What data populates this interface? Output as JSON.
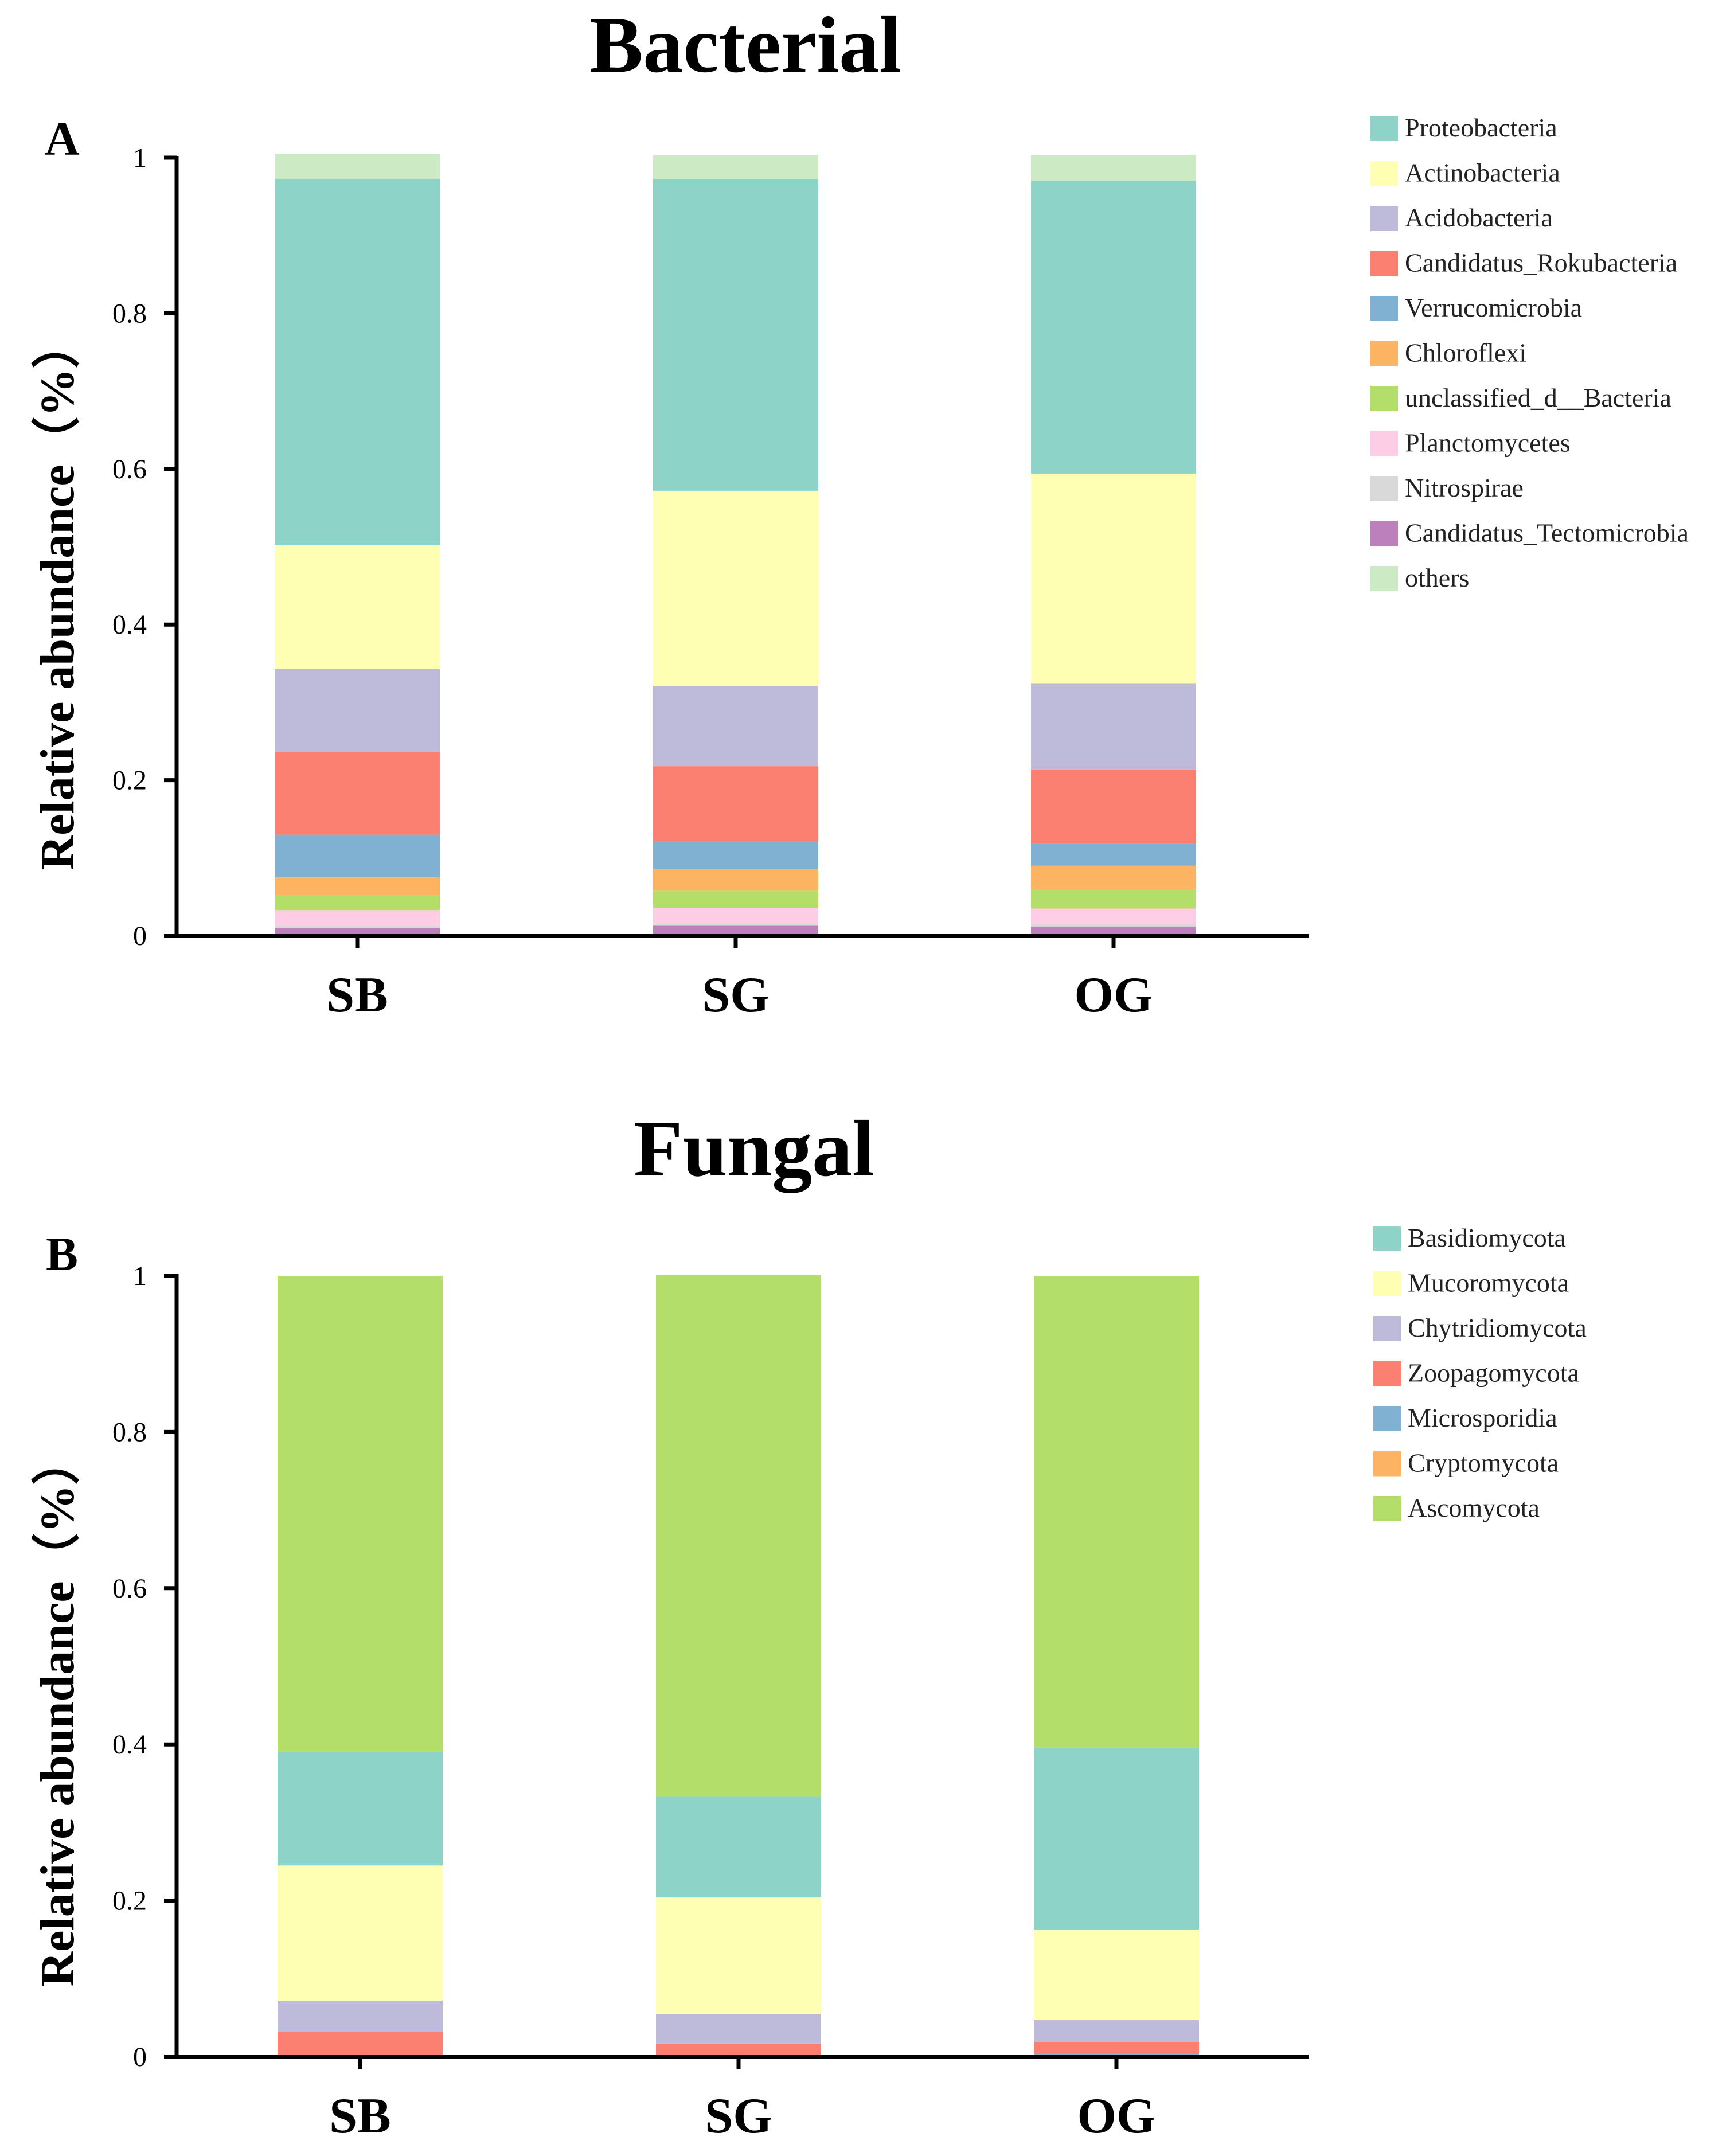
{
  "chart_data": [
    {
      "type": "bar",
      "stacked": true,
      "panel": "A",
      "title": "Bacterial",
      "xlabel": "",
      "ylabel": "Relative abundance（%）",
      "ylim": [
        0,
        1
      ],
      "yticks": [
        "0",
        "0.2",
        "0.4",
        "0.6",
        "0.8",
        "1"
      ],
      "categories": [
        "SB",
        "SG",
        "OG"
      ],
      "legend_position": "right",
      "series": [
        {
          "name": "Candidatus_Tectomicrobia",
          "color": "#bc80bd",
          "values": [
            0.01,
            0.013,
            0.012
          ]
        },
        {
          "name": "Nitrospirae",
          "color": "#d9d9d9",
          "values": [
            0.003,
            0.003,
            0.003
          ]
        },
        {
          "name": "Planctomycetes",
          "color": "#fccde5",
          "values": [
            0.02,
            0.02,
            0.02
          ]
        },
        {
          "name": "unclassified_d__Bacteria",
          "color": "#b3de69",
          "values": [
            0.02,
            0.022,
            0.025
          ]
        },
        {
          "name": "Chloroflexi",
          "color": "#fdb462",
          "values": [
            0.022,
            0.028,
            0.03
          ]
        },
        {
          "name": "Verrucomicrobia",
          "color": "#80b1d3",
          "values": [
            0.055,
            0.035,
            0.028
          ]
        },
        {
          "name": "Candidatus_Rokubacteria",
          "color": "#fb8072",
          "values": [
            0.106,
            0.097,
            0.095
          ]
        },
        {
          "name": "Acidobacteria",
          "color": "#bebada",
          "values": [
            0.107,
            0.103,
            0.111
          ]
        },
        {
          "name": "Actinobacteria",
          "color": "#ffffb3",
          "values": [
            0.159,
            0.251,
            0.27
          ]
        },
        {
          "name": "Proteobacteria",
          "color": "#8dd3c7",
          "values": [
            0.471,
            0.4,
            0.376
          ]
        },
        {
          "name": "others",
          "color": "#ccebc5",
          "values": [
            0.032,
            0.031,
            0.033
          ]
        }
      ],
      "legend_order": [
        "Proteobacteria",
        "Actinobacteria",
        "Acidobacteria",
        "Candidatus_Rokubacteria",
        "Verrucomicrobia",
        "Chloroflexi",
        "unclassified_d__Bacteria",
        "Planctomycetes",
        "Nitrospirae",
        "Candidatus_Tectomicrobia",
        "others"
      ]
    },
    {
      "type": "bar",
      "stacked": true,
      "panel": "B",
      "title": "Fungal",
      "xlabel": "",
      "ylabel": "Relative abundance（%）",
      "ylim": [
        0,
        1
      ],
      "yticks": [
        "0",
        "0.2",
        "0.4",
        "0.6",
        "0.8",
        "1"
      ],
      "categories": [
        "SB",
        "SG",
        "OG"
      ],
      "legend_position": "right",
      "series": [
        {
          "name": "Cryptomycota",
          "color": "#fdb462",
          "values": [
            0.001,
            0.001,
            0.001
          ]
        },
        {
          "name": "Microsporidia",
          "color": "#80b1d3",
          "values": [
            0.001,
            0.001,
            0.003
          ]
        },
        {
          "name": "Zoopagomycota",
          "color": "#fb8072",
          "values": [
            0.03,
            0.015,
            0.015
          ]
        },
        {
          "name": "Chytridiomycota",
          "color": "#bebada",
          "values": [
            0.04,
            0.038,
            0.028
          ]
        },
        {
          "name": "Mucoromycota",
          "color": "#ffffb3",
          "values": [
            0.173,
            0.149,
            0.116
          ]
        },
        {
          "name": "Basidiomycota",
          "color": "#8dd3c7",
          "values": [
            0.145,
            0.129,
            0.233
          ]
        },
        {
          "name": "Ascomycota",
          "color": "#b3de69",
          "values": [
            0.61,
            0.668,
            0.604
          ]
        }
      ],
      "legend_order": [
        "Basidiomycota",
        "Mucoromycota",
        "Chytridiomycota",
        "Zoopagomycota",
        "Microsporidia",
        "Cryptomycota",
        "Ascomycota"
      ]
    }
  ]
}
